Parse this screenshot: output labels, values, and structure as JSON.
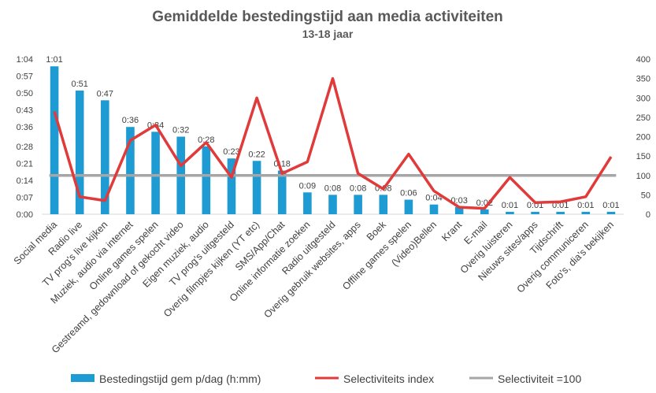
{
  "chart_data": {
    "type": "bar",
    "title": "Gemiddelde bestedingstijd aan media activiteiten",
    "subtitle": "13-18 jaar",
    "categories": [
      "Social media",
      "Radio live",
      "TV prog's live kijken",
      "Muziek, audio via internet",
      "Online games spelen",
      "Gestreamd, gedownload of gekocht video",
      "Eigen muziek, audio",
      "TV prog's uitgesteld",
      "Overig filmpjes kijken (YT etc)",
      "SMS/App/Chat",
      "Online informatie zoeken",
      "Radio uitgesteld",
      "Overig gebruik websites, apps",
      "Boek",
      "Offline games spelen",
      "(Video)Bellen",
      "Krant",
      "E-mail",
      "Overig luisteren",
      "Nieuws sites/apps",
      "Tijdschrift",
      "Overig communiceren",
      "Foto's, dia's bekijken"
    ],
    "series": [
      {
        "name": "Bestedingstijd gem p/dag  (h:mm)",
        "axis": "left",
        "color": "#1f9bd3",
        "values_minutes": [
          61,
          51,
          47,
          36,
          34,
          32,
          28,
          23,
          22,
          18,
          9,
          8,
          8,
          8,
          6,
          4,
          3,
          2,
          1,
          1,
          1,
          1,
          1
        ],
        "labels": [
          "1:01",
          "0:51",
          "0:47",
          "0:36",
          "0:34",
          "0:32",
          "0:28",
          "0:23",
          "0:22",
          "0:18",
          "0:09",
          "0:08",
          "0:08",
          "0:08",
          "0:06",
          "0:04",
          "0:03",
          "0:02",
          "0:01",
          "0:01",
          "0:01",
          "0:01",
          "0:01"
        ]
      },
      {
        "name": "Selectiviteits index",
        "axis": "right",
        "color": "#e03a3a",
        "values": [
          265,
          45,
          35,
          190,
          230,
          125,
          185,
          95,
          300,
          105,
          135,
          350,
          105,
          65,
          155,
          60,
          18,
          15,
          95,
          30,
          32,
          45,
          148
        ]
      },
      {
        "name": "Selectiviteit =100",
        "axis": "right",
        "color": "#a6a6a6",
        "values": [
          100,
          100,
          100,
          100,
          100,
          100,
          100,
          100,
          100,
          100,
          100,
          100,
          100,
          100,
          100,
          100,
          100,
          100,
          100,
          100,
          100,
          100,
          100
        ]
      }
    ],
    "y_left": {
      "ticks_minutes": [
        0,
        7,
        14,
        21,
        28,
        36,
        43,
        50,
        57,
        64
      ],
      "tick_labels": [
        "0:00",
        "0:07",
        "0:14",
        "0:21",
        "0:28",
        "0:36",
        "0:43",
        "0:50",
        "0:57",
        "1:04"
      ],
      "ylim": [
        0,
        64
      ]
    },
    "y_right": {
      "ticks": [
        0,
        50,
        100,
        150,
        200,
        250,
        300,
        350,
        400
      ],
      "tick_labels": [
        "0",
        "50",
        "100",
        "150",
        "200",
        "250",
        "300",
        "350",
        "400"
      ],
      "ylim": [
        0,
        400
      ]
    },
    "grid": false,
    "legend_position": "bottom"
  }
}
